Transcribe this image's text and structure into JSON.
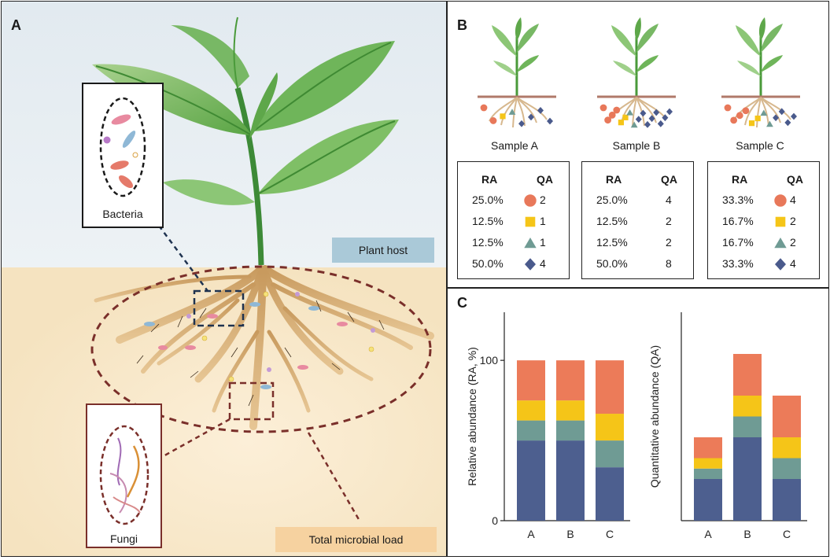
{
  "panel_a": {
    "label": "A",
    "plant_host_label": "Plant host",
    "bacteria_label": "Bacteria",
    "fungi_label": "Fungi",
    "microbial_load_label": "Total microbial load",
    "colors": {
      "sky": "#e6edf2",
      "soil": "#f7e6c4",
      "plant_host_tag": "#aac9d8",
      "load_tag": "#f6d2a0"
    }
  },
  "panel_b": {
    "label": "B",
    "samples": [
      {
        "name": "Sample A",
        "rows": [
          {
            "ra": "25.0%",
            "qa": "2",
            "shape": "circle"
          },
          {
            "ra": "12.5%",
            "qa": "1",
            "shape": "square"
          },
          {
            "ra": "12.5%",
            "qa": "1",
            "shape": "triangle"
          },
          {
            "ra": "50.0%",
            "qa": "4",
            "shape": "diamond"
          }
        ]
      },
      {
        "name": "Sample B",
        "rows": [
          {
            "ra": "25.0%",
            "qa": "4",
            "shape": ""
          },
          {
            "ra": "12.5%",
            "qa": "2",
            "shape": ""
          },
          {
            "ra": "12.5%",
            "qa": "2",
            "shape": ""
          },
          {
            "ra": "50.0%",
            "qa": "8",
            "shape": ""
          }
        ]
      },
      {
        "name": "Sample C",
        "rows": [
          {
            "ra": "33.3%",
            "qa": "4",
            "shape": "circle"
          },
          {
            "ra": "16.7%",
            "qa": "2",
            "shape": "square"
          },
          {
            "ra": "16.7%",
            "qa": "2",
            "shape": "triangle"
          },
          {
            "ra": "33.3%",
            "qa": "4",
            "shape": "diamond"
          }
        ]
      }
    ],
    "ra_header": "RA",
    "qa_header": "QA",
    "colors": {
      "circle": "#e8785a",
      "square": "#f5c518",
      "triangle": "#6f9b94",
      "diamond": "#4a5a8c"
    }
  },
  "panel_c": {
    "label": "C"
  },
  "chart_data": [
    {
      "type": "bar",
      "stacked": true,
      "categories": [
        "A",
        "B",
        "C"
      ],
      "ylabel": "Relative abundance (RA, %)",
      "yticks": [
        0,
        100
      ],
      "ylim": [
        0,
        130
      ],
      "series": [
        {
          "color": "#4d5f8f",
          "values": [
            50,
            50,
            33.3
          ]
        },
        {
          "color": "#6f9b94",
          "values": [
            12.5,
            12.5,
            16.7
          ]
        },
        {
          "color": "#f5c518",
          "values": [
            12.5,
            12.5,
            16.7
          ]
        },
        {
          "color": "#ec7b59",
          "values": [
            25,
            25,
            33.3
          ]
        }
      ]
    },
    {
      "type": "bar",
      "stacked": true,
      "categories": [
        "A",
        "B",
        "C"
      ],
      "ylabel": "Quantitative abundance (QA)",
      "yticks": [],
      "ylim": [
        0,
        20
      ],
      "series": [
        {
          "color": "#4d5f8f",
          "values": [
            4,
            8,
            4
          ]
        },
        {
          "color": "#6f9b94",
          "values": [
            1,
            2,
            2
          ]
        },
        {
          "color": "#f5c518",
          "values": [
            1,
            2,
            2
          ]
        },
        {
          "color": "#ec7b59",
          "values": [
            2,
            4,
            4
          ]
        }
      ]
    }
  ]
}
